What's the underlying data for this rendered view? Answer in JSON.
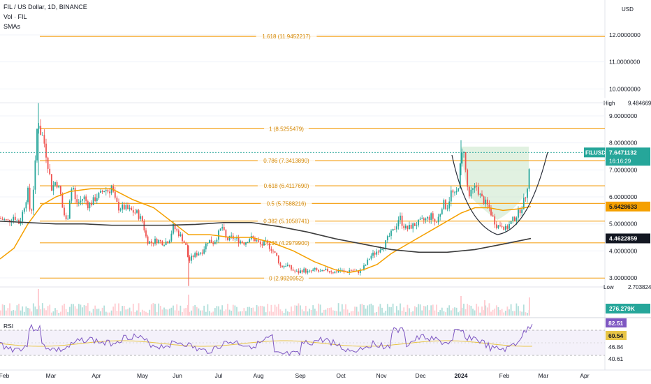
{
  "header": {
    "title": "FIL / US Dollar, 1D, BINANCE",
    "indicator1": "Vol · FIL",
    "indicator2": "SMAs",
    "currency": "USD",
    "rsi_label": "RSI"
  },
  "colors": {
    "fib": "#f5a623",
    "sma_short": "#f5a000",
    "sma_long": "#3d3d3d",
    "up": "#26a69a",
    "down": "#ef5350",
    "rsi": "#7e57c2",
    "rsi_ma": "#e8c547",
    "cup_fill": "#c8e6c9",
    "cup_line": "#2a2e39"
  },
  "chart_data": [
    {
      "type": "candlestick",
      "symbol": "FILUSD",
      "x_ticks": [
        "Feb",
        "Mar",
        "Apr",
        "May",
        "Jun",
        "Jul",
        "Aug",
        "Sep",
        "Oct",
        "Nov",
        "Dec",
        "2024",
        "Feb",
        "Mar",
        "Apr"
      ],
      "y_ticks": [
        "12.0000000",
        "11.0000000",
        "10.0000000",
        "9.0000000",
        "8.0000000",
        "7.0000000",
        "6.0000000",
        "5.0000000",
        "4.0000000",
        "3.0000000"
      ],
      "ylim": [
        2.5,
        12.8
      ],
      "fib_levels": [
        {
          "label": "1.618 (11.9452217)",
          "value": 11.9452217
        },
        {
          "label": "1 (8.5255479)",
          "value": 8.5255479
        },
        {
          "label": "0.786 (7.3413890)",
          "value": 7.341389
        },
        {
          "label": "0.618 (6.4117690)",
          "value": 6.411769
        },
        {
          "label": "0.5 (5.7588216)",
          "value": 5.7588216
        },
        {
          "label": "0.382 (5.1058741)",
          "value": 5.1058741
        },
        {
          "label": "0.236 (4.2979900)",
          "value": 4.29799
        },
        {
          "label": "0 (2.9920952)",
          "value": 2.9920952
        }
      ],
      "price_tags": [
        {
          "label": "High",
          "value": "9.4846697"
        },
        {
          "label": "Low",
          "value": "2.7038241"
        },
        {
          "label": "FILUSD",
          "value": "7.6471132",
          "sub": "16:16:29"
        },
        {
          "label": "",
          "value": "5.6428633"
        },
        {
          "label": "",
          "value": "4.4622859"
        }
      ],
      "volume_tag": "276.279K",
      "close_path": [
        [
          0,
          5.2
        ],
        [
          12,
          5.1
        ],
        [
          20,
          5.3
        ],
        [
          28,
          5.0
        ],
        [
          34,
          5.6
        ],
        [
          40,
          6.2
        ],
        [
          44,
          5.2
        ],
        [
          50,
          7.0
        ],
        [
          54,
          9.0
        ],
        [
          58,
          8.4
        ],
        [
          62,
          8.2
        ],
        [
          66,
          7.6
        ],
        [
          70,
          7.0
        ],
        [
          74,
          6.3
        ],
        [
          80,
          6.6
        ],
        [
          86,
          6.2
        ],
        [
          90,
          5.5
        ],
        [
          96,
          5.0
        ],
        [
          100,
          6.0
        ],
        [
          104,
          6.5
        ],
        [
          108,
          5.8
        ],
        [
          114,
          5.8
        ],
        [
          120,
          6.0
        ],
        [
          126,
          5.7
        ],
        [
          132,
          5.8
        ],
        [
          138,
          6.0
        ],
        [
          144,
          6.1
        ],
        [
          150,
          6.3
        ],
        [
          156,
          6.2
        ],
        [
          160,
          6.4
        ],
        [
          164,
          5.9
        ],
        [
          170,
          5.6
        ],
        [
          178,
          5.6
        ],
        [
          186,
          5.5
        ],
        [
          196,
          5.4
        ],
        [
          204,
          5.1
        ],
        [
          210,
          4.4
        ],
        [
          216,
          4.3
        ],
        [
          224,
          4.4
        ],
        [
          234,
          4.3
        ],
        [
          242,
          4.4
        ],
        [
          248,
          4.9
        ],
        [
          254,
          4.7
        ],
        [
          260,
          4.5
        ],
        [
          266,
          4.2
        ],
        [
          270,
          3.6
        ],
        [
          276,
          3.8
        ],
        [
          282,
          3.9
        ],
        [
          290,
          4.0
        ],
        [
          298,
          4.4
        ],
        [
          306,
          4.3
        ],
        [
          312,
          4.6
        ],
        [
          318,
          4.9
        ],
        [
          324,
          4.4
        ],
        [
          332,
          4.5
        ],
        [
          340,
          4.4
        ],
        [
          350,
          4.3
        ],
        [
          358,
          4.5
        ],
        [
          366,
          4.4
        ],
        [
          374,
          4.2
        ],
        [
          380,
          4.3
        ],
        [
          388,
          4.1
        ],
        [
          396,
          3.8
        ],
        [
          402,
          3.4
        ],
        [
          410,
          3.5
        ],
        [
          418,
          3.3
        ],
        [
          426,
          3.2
        ],
        [
          434,
          3.3
        ],
        [
          442,
          3.2
        ],
        [
          450,
          3.3
        ],
        [
          460,
          3.2
        ],
        [
          470,
          3.3
        ],
        [
          478,
          3.2
        ],
        [
          486,
          3.3
        ],
        [
          494,
          3.2
        ],
        [
          502,
          3.3
        ],
        [
          510,
          3.2
        ],
        [
          518,
          3.3
        ],
        [
          524,
          3.5
        ],
        [
          530,
          3.8
        ],
        [
          536,
          3.9
        ],
        [
          544,
          4.1
        ],
        [
          550,
          4.2
        ],
        [
          556,
          4.5
        ],
        [
          562,
          4.7
        ],
        [
          568,
          5.0
        ],
        [
          572,
          5.3
        ],
        [
          576,
          5.0
        ],
        [
          582,
          4.8
        ],
        [
          588,
          4.9
        ],
        [
          596,
          5.0
        ],
        [
          604,
          5.1
        ],
        [
          612,
          5.2
        ],
        [
          618,
          5.3
        ],
        [
          624,
          5.0
        ],
        [
          630,
          5.4
        ],
        [
          634,
          5.8
        ],
        [
          640,
          5.6
        ],
        [
          646,
          6.2
        ],
        [
          652,
          6.0
        ],
        [
          656,
          6.4
        ],
        [
          660,
          7.4
        ],
        [
          664,
          7.8
        ],
        [
          668,
          6.5
        ],
        [
          672,
          6.0
        ],
        [
          676,
          6.2
        ],
        [
          682,
          6.4
        ],
        [
          688,
          6.0
        ],
        [
          694,
          5.8
        ],
        [
          700,
          5.6
        ],
        [
          706,
          5.2
        ],
        [
          712,
          4.9
        ],
        [
          718,
          5.0
        ],
        [
          724,
          4.8
        ],
        [
          730,
          5.0
        ],
        [
          736,
          5.2
        ],
        [
          742,
          5.4
        ],
        [
          748,
          5.7
        ],
        [
          752,
          6.0
        ],
        [
          756,
          6.6
        ],
        [
          760,
          7.6
        ]
      ],
      "rsi": {
        "values": [
          "82.51",
          "60.54",
          "46.84",
          "40.61"
        ]
      }
    }
  ]
}
